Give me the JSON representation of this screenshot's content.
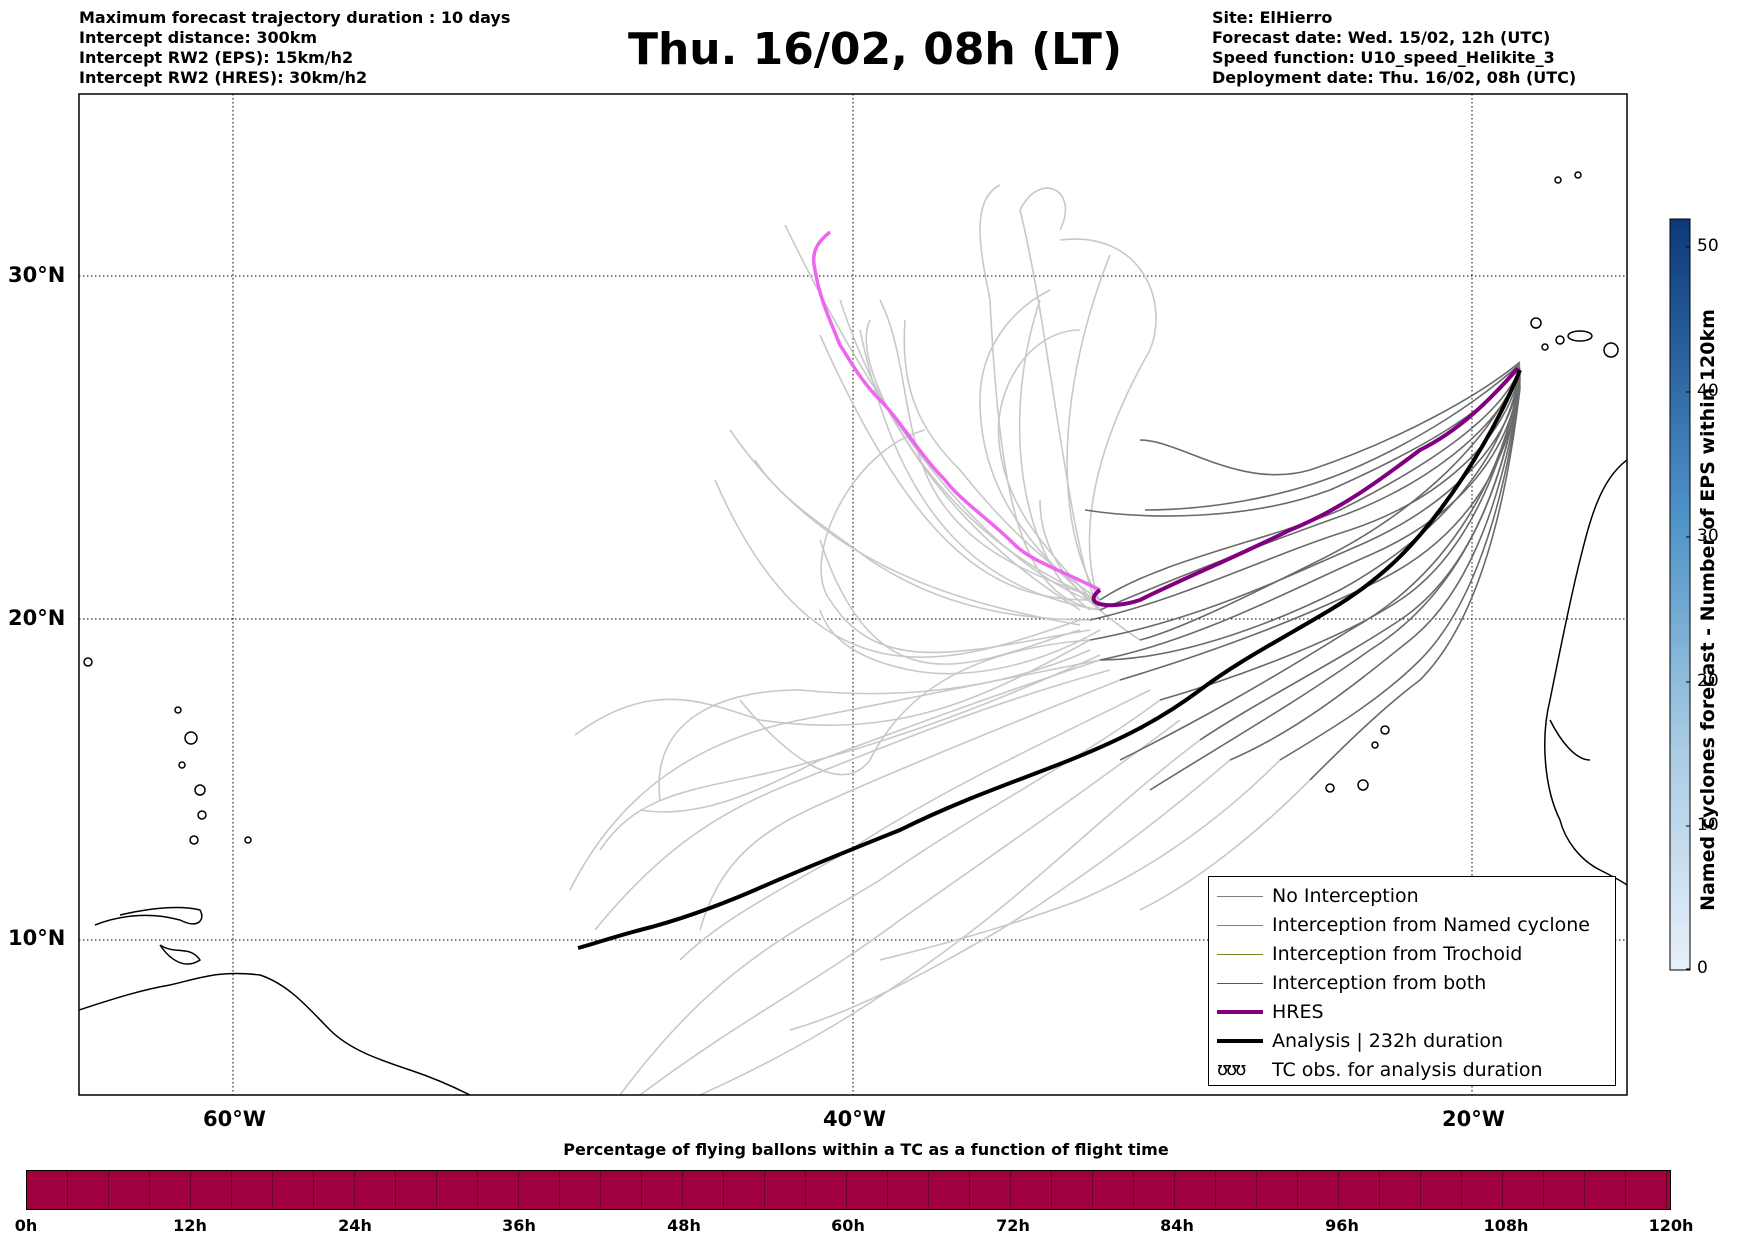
{
  "header": {
    "left_lines": [
      "Maximum forecast trajectory duration : 10 days",
      "Intercept distance: 300km",
      "Intercept RW2 (EPS):  15km/h2",
      "Intercept RW2 (HRES): 30km/h2"
    ],
    "title": "Thu. 16/02, 08h (LT)",
    "right_lines": [
      "Site: ElHierro",
      "Forecast date: Wed. 15/02, 12h (UTC)",
      "Speed function: U10_speed_Helikite_3",
      "Deployment date: Thu. 16/02, 08h (UTC)"
    ]
  },
  "map": {
    "lat_labels": [
      "30°N",
      "20°N",
      "10°N"
    ],
    "lon_labels": [
      "60°W",
      "40°W",
      "20°W"
    ],
    "colors": {
      "hres": "#800080",
      "hres_light": "#ee66ee",
      "analysis": "#000000",
      "eps_dark": "#6a6a6a",
      "eps_light": "#c8c8c8"
    }
  },
  "legend": {
    "items": [
      {
        "label": "No Interception",
        "color": "#808080",
        "width": 1
      },
      {
        "label": "Interception from Named cyclone",
        "color": "#e06020",
        "width": 1
      },
      {
        "label": "Interception from Trochoid",
        "color": "#808020",
        "width": 1
      },
      {
        "label": "Interception from both",
        "color": "#208020",
        "width": 1
      },
      {
        "label": "HRES",
        "color": "#800080",
        "width": 4
      },
      {
        "label": "Analysis | 232h duration",
        "color": "#000000",
        "width": 4
      }
    ],
    "tc_label": "TC obs. for analysis duration",
    "tc_symbol": "ʊʊʊ"
  },
  "colorbar": {
    "title": "Named cyclones forecast - Number of EPS within 120km",
    "ticks": [
      "50",
      "40",
      "30",
      "20",
      "10",
      "0"
    ]
  },
  "percentage_bar": {
    "title": "Percentage of flying ballons within a TC as a function of flight time",
    "time_labels": [
      "0h",
      "12h",
      "24h",
      "36h",
      "48h",
      "60h",
      "72h",
      "84h",
      "96h",
      "108h",
      "120h"
    ],
    "color": "#a0003d"
  }
}
